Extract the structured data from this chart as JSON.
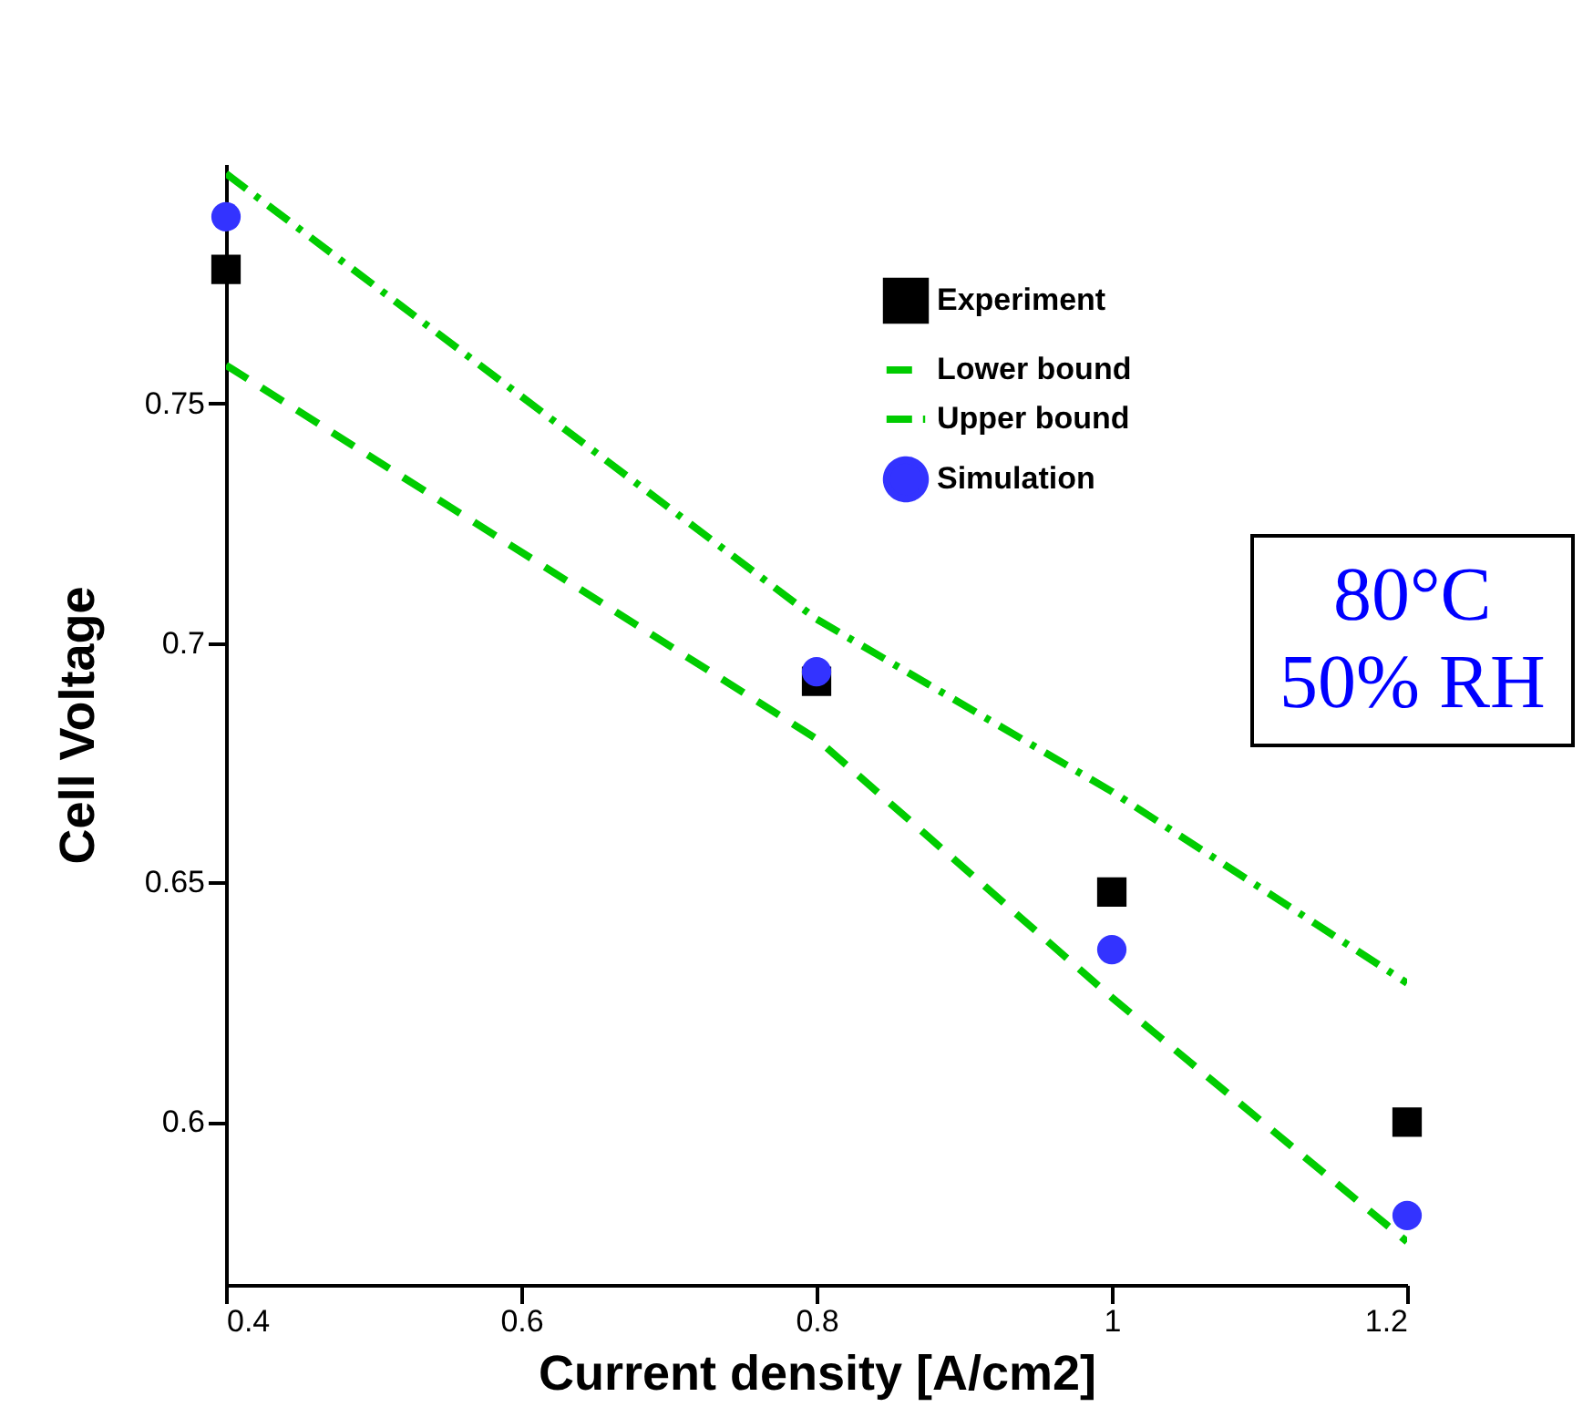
{
  "chart_data": {
    "type": "scatter",
    "xlabel": "Current density [A/cm2]",
    "ylabel": "Cell Voltage",
    "x": [
      0.4,
      0.8,
      1.0,
      1.2
    ],
    "xlim": [
      0.4,
      1.2
    ],
    "xticks": [
      0.4,
      0.6,
      0.8,
      1,
      1.2
    ],
    "ylim": [
      0.566,
      0.8
    ],
    "yticks": [
      0.6,
      0.65,
      0.7,
      0.75
    ],
    "grid": false,
    "legend": "top right",
    "series": [
      {
        "name": "Experiment",
        "marker": "square",
        "color": "#000000",
        "values": [
          0.778,
          0.692,
          0.648,
          0.6
        ]
      },
      {
        "name": "Lower bound",
        "type": "line",
        "line_style": "dashed",
        "color": "#00cc00",
        "values": [
          0.758,
          0.68,
          0.626,
          0.575
        ]
      },
      {
        "name": "Upper bound",
        "type": "line",
        "line_style": "dashdot",
        "color": "#00cc00",
        "values": [
          0.798,
          0.705,
          0.669,
          0.629
        ]
      },
      {
        "name": "Simulation",
        "marker": "circle",
        "color": "#3333ff",
        "values": [
          0.789,
          0.694,
          0.636,
          0.5805
        ]
      }
    ],
    "annotations": [
      "80°C",
      "50% RH"
    ]
  }
}
